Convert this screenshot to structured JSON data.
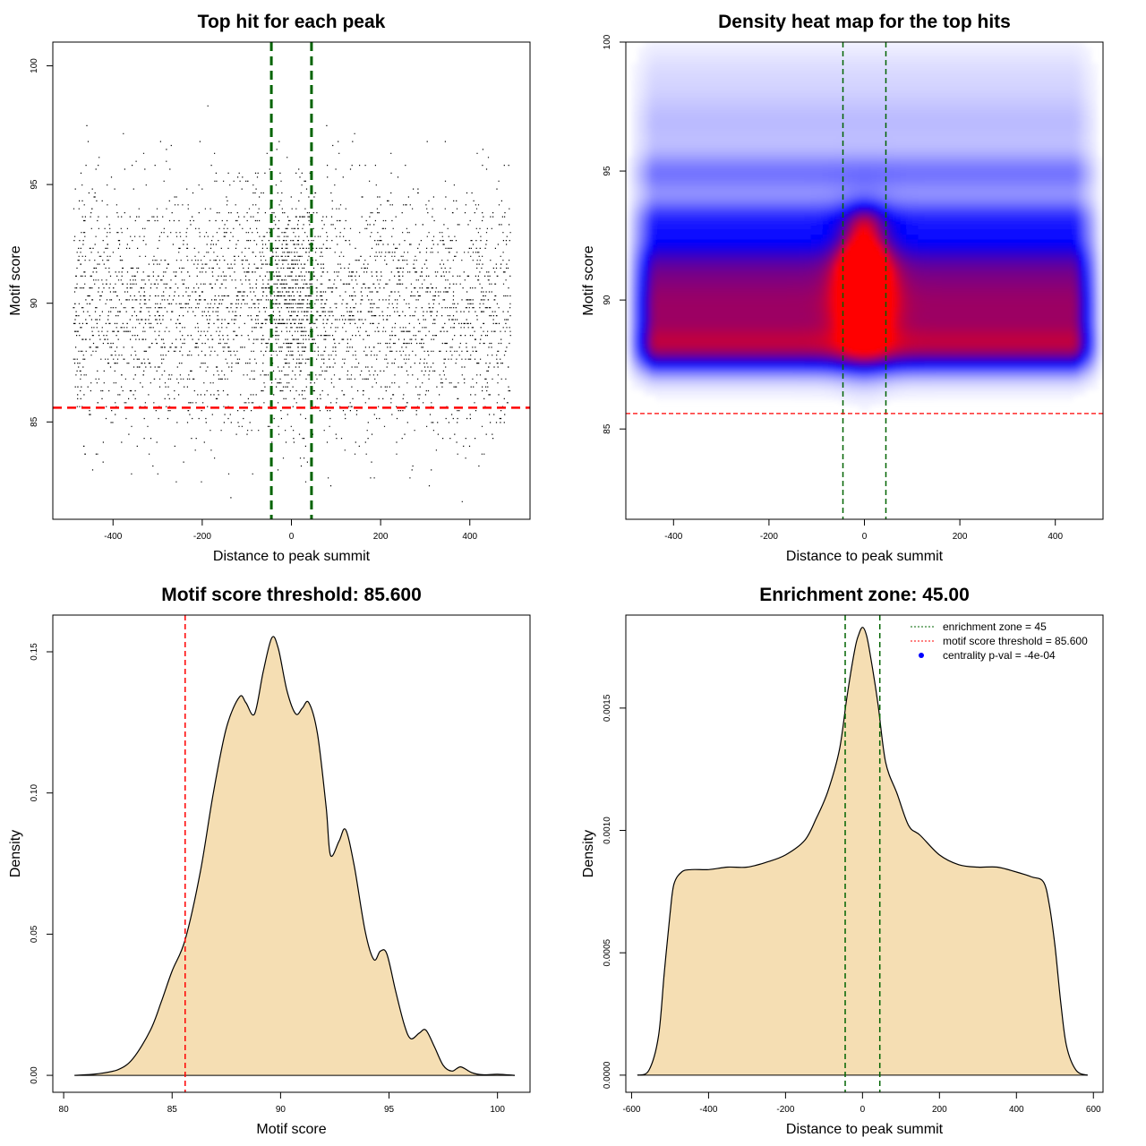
{
  "chart_data": [
    {
      "panel": "scatter",
      "type": "scatter",
      "title": "Top hit for each peak",
      "xlabel": "Distance to peak summit",
      "ylabel": "Motif score",
      "xlim": [
        -535,
        535
      ],
      "ylim": [
        80.9,
        101
      ],
      "xticks": [
        -400,
        -200,
        0,
        200,
        400
      ],
      "yticks": [
        85,
        90,
        95,
        100
      ],
      "distribution": {
        "x_range": [
          -490,
          490
        ],
        "score_mean": 89.7,
        "score_sd": 2.6,
        "score_range": [
          81.5,
          100
        ],
        "central_enrichment_halfwidth": 45
      },
      "reference_lines": {
        "vertical": [
          -45,
          45
        ],
        "horizontal": 85.6
      },
      "line_colors": {
        "vertical": "#006400",
        "horizontal": "#ff0000"
      }
    },
    {
      "panel": "heatmap",
      "type": "heatmap",
      "title": "Density heat map for the top hits",
      "xlabel": "Distance to peak summit",
      "ylabel": "Motif score",
      "xlim": [
        -500,
        500
      ],
      "ylim": [
        81.5,
        100
      ],
      "xticks": [
        -400,
        -200,
        0,
        200,
        400
      ],
      "yticks": [
        85,
        90,
        95,
        100
      ],
      "colors": {
        "low": "#ffffff",
        "mid": "#0000ff",
        "high": "#ff0000"
      },
      "bands": [
        {
          "y": 89.6,
          "sd": 1.2,
          "density": 0.85
        },
        {
          "y": 88.1,
          "sd": 0.6,
          "density": 0.55
        },
        {
          "y": 91.6,
          "sd": 0.9,
          "density": 0.5
        },
        {
          "y": 93.2,
          "sd": 0.6,
          "density": 0.35
        },
        {
          "y": 94.9,
          "sd": 0.6,
          "density": 0.28
        },
        {
          "y": 96.8,
          "sd": 0.9,
          "density": 0.14
        },
        {
          "y": 98.8,
          "sd": 0.9,
          "density": 0.07
        }
      ],
      "central_peaks": [
        {
          "x": 0,
          "y": 90.4,
          "sx": 38,
          "sy": 1.6,
          "density": 0.9
        },
        {
          "x": -5,
          "y": 91.3,
          "sx": 28,
          "sy": 0.8,
          "density": 0.45
        },
        {
          "x": 0,
          "y": 93.0,
          "sx": 25,
          "sy": 0.5,
          "density": 0.25
        }
      ],
      "reference_lines": {
        "vertical": [
          -45,
          45
        ],
        "horizontal": 85.6
      },
      "line_colors": {
        "vertical": "#006400",
        "horizontal": "#ff0000"
      }
    },
    {
      "panel": "score_density",
      "type": "area",
      "title": "Motif score threshold: 85.600",
      "xlabel": "Motif score",
      "ylabel": "Density",
      "xlim": [
        79.5,
        101.5
      ],
      "ylim": [
        -0.006,
        0.163
      ],
      "xticks": [
        80,
        85,
        90,
        95,
        100
      ],
      "yticks": [
        0.0,
        0.05,
        0.1,
        0.15
      ],
      "ytick_labels": [
        "0.00",
        "0.05",
        "0.10",
        "0.15"
      ],
      "fill_color": "#f5deb3",
      "x": [
        80.5,
        81.5,
        82.5,
        83.2,
        84.0,
        84.5,
        85.0,
        85.6,
        86.3,
        86.9,
        87.5,
        88.1,
        88.4,
        88.8,
        89.2,
        89.6,
        89.9,
        90.3,
        90.7,
        91.0,
        91.3,
        91.7,
        92.1,
        92.3,
        92.7,
        93.0,
        93.4,
        93.9,
        94.3,
        94.6,
        94.9,
        95.3,
        95.7,
        96.0,
        96.4,
        96.7,
        97.1,
        97.5,
        97.9,
        98.3,
        98.8,
        99.3,
        100.0,
        100.8
      ],
      "y": [
        0.0,
        0.0005,
        0.002,
        0.006,
        0.016,
        0.026,
        0.037,
        0.048,
        0.072,
        0.1,
        0.123,
        0.134,
        0.132,
        0.128,
        0.143,
        0.155,
        0.151,
        0.136,
        0.128,
        0.13,
        0.132,
        0.121,
        0.095,
        0.078,
        0.083,
        0.087,
        0.074,
        0.051,
        0.041,
        0.044,
        0.043,
        0.03,
        0.018,
        0.013,
        0.015,
        0.016,
        0.01,
        0.0035,
        0.0015,
        0.003,
        0.001,
        0.0002,
        0.0004,
        0.0
      ],
      "threshold": 85.6,
      "threshold_color": "#ff0000"
    },
    {
      "panel": "distance_density",
      "type": "area",
      "title": "Enrichment zone: 45.00",
      "xlabel": "Distance to peak summit",
      "ylabel": "Density",
      "xlim": [
        -615,
        625
      ],
      "ylim": [
        -7e-05,
        0.00188
      ],
      "xticks": [
        -600,
        -400,
        -200,
        0,
        200,
        400,
        600
      ],
      "yticks": [
        0.0,
        0.0005,
        0.001,
        0.0015
      ],
      "ytick_labels": [
        "0.0000",
        "0.0005",
        "0.0010",
        "0.0015"
      ],
      "fill_color": "#f5deb3",
      "x": [
        -585,
        -555,
        -530,
        -515,
        -500,
        -490,
        -470,
        -445,
        -400,
        -350,
        -300,
        -250,
        -200,
        -150,
        -120,
        -90,
        -60,
        -40,
        -20,
        -10,
        0,
        10,
        20,
        40,
        60,
        90,
        120,
        150,
        200,
        250,
        300,
        350,
        400,
        440,
        470,
        485,
        500,
        515,
        530,
        555,
        585
      ],
      "y": [
        0.0,
        2e-05,
        0.00016,
        0.00042,
        0.00066,
        0.00078,
        0.00083,
        0.00084,
        0.00084,
        0.00085,
        0.00085,
        0.00087,
        0.0009,
        0.00096,
        0.00105,
        0.00116,
        0.00133,
        0.00155,
        0.00174,
        0.0018,
        0.00183,
        0.0018,
        0.00172,
        0.00152,
        0.00128,
        0.00115,
        0.00102,
        0.00098,
        0.0009,
        0.00086,
        0.00085,
        0.00085,
        0.00083,
        0.00081,
        0.00079,
        0.0007,
        0.00053,
        0.0003,
        0.00012,
        2e-05,
        0.0
      ],
      "zone": [
        -45,
        45
      ],
      "zone_color": "#006400",
      "legend": {
        "position": "top-right",
        "entries": [
          {
            "label": "enrichment zone = 45",
            "color": "#006400",
            "symbol": "dotted-line"
          },
          {
            "label": "motif score threshold = 85.600",
            "color": "#ff0000",
            "symbol": "dotted-line"
          },
          {
            "label": "centrality p-val = -4e-04",
            "color": "#0000ff",
            "symbol": "point"
          }
        ]
      }
    }
  ]
}
